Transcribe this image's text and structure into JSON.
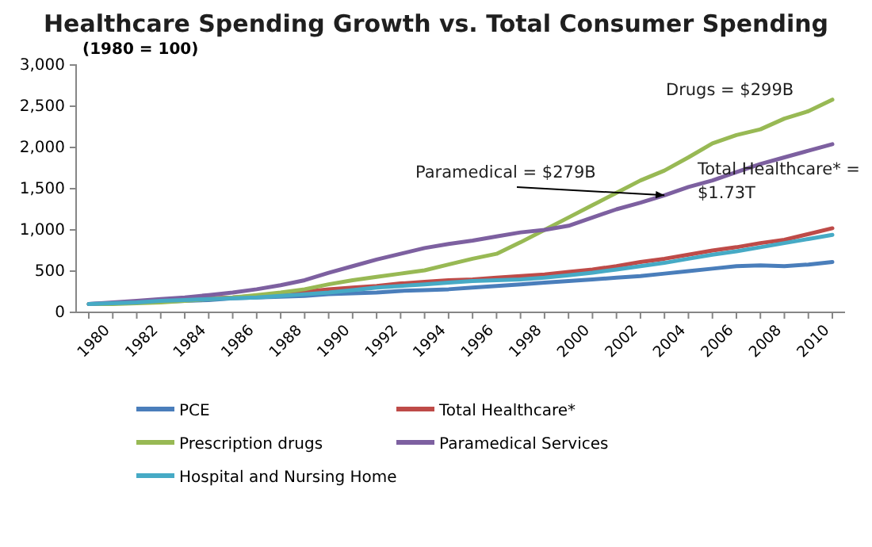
{
  "chart_data": {
    "type": "line",
    "title": "Healthcare Spending Growth vs. Total Consumer Spending",
    "subtitle": "(1980 = 100)",
    "categories": [
      "1980",
      null,
      "1982",
      null,
      "1984",
      null,
      "1986",
      null,
      "1988",
      null,
      "1990",
      null,
      "1992",
      null,
      "1994",
      null,
      "1996",
      null,
      "1998",
      null,
      "2000",
      null,
      "2002",
      null,
      "2004",
      null,
      "2006",
      null,
      "2008",
      null,
      "2010",
      null
    ],
    "ylim": [
      0,
      3000
    ],
    "yticks": [
      {
        "value": 0,
        "label": "0"
      },
      {
        "value": 500,
        "label": "500"
      },
      {
        "value": 1000,
        "label": "1,000"
      },
      {
        "value": 1500,
        "label": "1,500"
      },
      {
        "value": 2000,
        "label": "2,000"
      },
      {
        "value": 2500,
        "label": "2,500"
      },
      {
        "value": 3000,
        "label": "3,000"
      }
    ],
    "grid": false,
    "legend": "bottom",
    "marker": "none",
    "line_style": "solid",
    "series": [
      {
        "name": "PCE",
        "color": "#4a7ebb",
        "values": [
          100,
          110,
          120,
          130,
          140,
          150,
          170,
          180,
          190,
          200,
          220,
          230,
          240,
          260,
          270,
          280,
          300,
          320,
          340,
          360,
          380,
          400,
          420,
          440,
          470,
          500,
          530,
          560,
          570,
          560,
          580,
          610
        ]
      },
      {
        "name": "Total Healthcare*",
        "color": "#be4b48",
        "values": [
          null,
          null,
          null,
          null,
          150,
          170,
          180,
          200,
          220,
          250,
          280,
          300,
          320,
          350,
          370,
          390,
          400,
          420,
          440,
          460,
          490,
          520,
          560,
          610,
          650,
          700,
          750,
          790,
          840,
          880,
          950,
          1020
        ]
      },
      {
        "name": "Prescription drugs",
        "color": "#98b954",
        "values": [
          100,
          100,
          110,
          120,
          140,
          160,
          180,
          210,
          240,
          280,
          340,
          390,
          430,
          470,
          510,
          580,
          650,
          710,
          850,
          1000,
          1150,
          1300,
          1450,
          1600,
          1720,
          1880,
          2050,
          2150,
          2220,
          2350,
          2440,
          2580
        ]
      },
      {
        "name": "Paramedical Services",
        "color": "#7d60a0",
        "values": [
          100,
          120,
          140,
          160,
          180,
          210,
          240,
          280,
          330,
          390,
          480,
          560,
          640,
          710,
          780,
          830,
          870,
          920,
          970,
          1000,
          1050,
          1150,
          1250,
          1330,
          1420,
          1520,
          1600,
          1700,
          1800,
          1880,
          1960,
          2040
        ]
      },
      {
        "name": "Hospital and Nursing Home",
        "color": "#46aac5",
        "values": [
          100,
          110,
          120,
          140,
          150,
          160,
          170,
          180,
          200,
          220,
          240,
          270,
          300,
          320,
          340,
          360,
          380,
          390,
          400,
          420,
          450,
          480,
          520,
          560,
          600,
          650,
          700,
          740,
          790,
          840,
          890,
          940
        ]
      }
    ],
    "annotations": [
      "Drugs = $299B",
      {
        "text": "Paramedical = $279B",
        "x": "2004",
        "y": 1420
      },
      "Total Healthcare* = $1.73T"
    ]
  }
}
